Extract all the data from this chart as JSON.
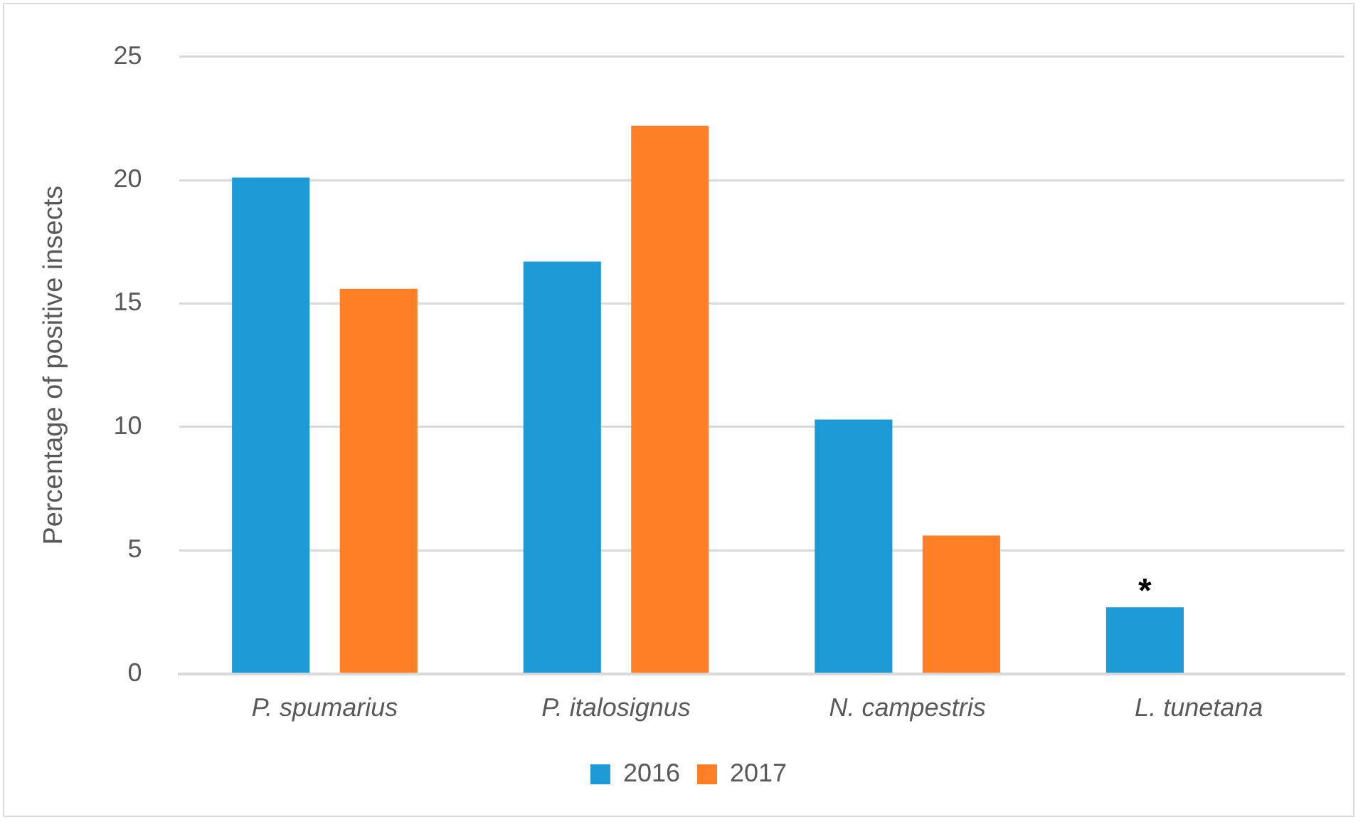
{
  "chart_data": {
    "type": "bar",
    "ylabel": "Percentage of positive insects",
    "categories": [
      "P. spumarius",
      "P. italosignus",
      "N. campestris",
      "L. tunetana"
    ],
    "series": [
      {
        "name": "2016",
        "color": "#1c9ad6",
        "values": [
          20.1,
          16.7,
          10.3,
          2.7
        ]
      },
      {
        "name": "2017",
        "color": "#fe7f26",
        "values": [
          15.6,
          22.2,
          5.6,
          null
        ]
      }
    ],
    "ylim": [
      0,
      25
    ],
    "yticks": [
      0,
      5,
      10,
      15,
      20,
      25
    ],
    "grid": "y",
    "legend": "bottom",
    "annotations": [
      "*"
    ]
  }
}
